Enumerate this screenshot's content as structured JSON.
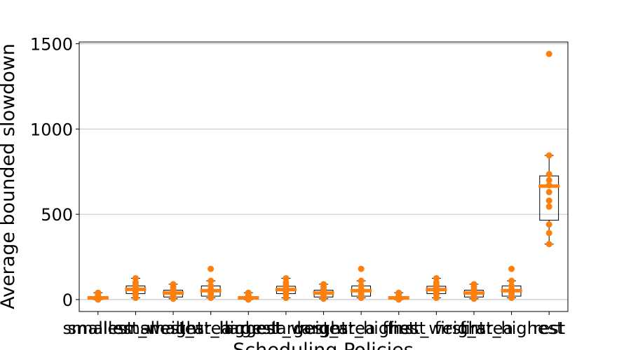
{
  "chart_data": {
    "type": "box",
    "title": "",
    "xlabel": "Scheduling Policies",
    "ylabel": "Average bounded slowdown",
    "ylim": [
      -70,
      1510
    ],
    "yticks": [
      0,
      500,
      1000,
      1500
    ],
    "grid": "horizontal",
    "colors": {
      "median": "#ff7f0e",
      "points": "#ff7f0e",
      "box": "#000000",
      "grid": "#b0b0b0"
    },
    "categories": [
      "smallest",
      "smallest_weight",
      "smallest_area",
      "smallest_highest",
      "largest",
      "largest_weight",
      "largest_area",
      "largest_highest",
      "first",
      "first_weight",
      "first_area",
      "first_highest",
      "rest"
    ],
    "boxes": [
      {
        "q1": 2,
        "median": 10,
        "q3": 18,
        "whisker_low": 0,
        "whisker_high": 40,
        "points": [
          0,
          3,
          6,
          10,
          14,
          20,
          28,
          40
        ]
      },
      {
        "q1": 35,
        "median": 60,
        "q3": 80,
        "whisker_low": 10,
        "whisker_high": 125,
        "points": [
          10,
          30,
          45,
          55,
          60,
          70,
          85,
          100,
          125
        ]
      },
      {
        "q1": 15,
        "median": 38,
        "q3": 55,
        "whisker_low": 5,
        "whisker_high": 90,
        "points": [
          5,
          15,
          25,
          35,
          40,
          50,
          60,
          75,
          90
        ]
      },
      {
        "q1": 20,
        "median": 52,
        "q3": 80,
        "whisker_low": 10,
        "whisker_high": 110,
        "points": [
          10,
          20,
          35,
          52,
          60,
          80,
          110,
          180
        ]
      },
      {
        "q1": 2,
        "median": 10,
        "q3": 18,
        "whisker_low": 0,
        "whisker_high": 40,
        "points": [
          0,
          3,
          6,
          10,
          14,
          20,
          28,
          40
        ]
      },
      {
        "q1": 35,
        "median": 58,
        "q3": 78,
        "whisker_low": 10,
        "whisker_high": 125,
        "points": [
          10,
          30,
          45,
          55,
          60,
          70,
          85,
          100,
          125
        ]
      },
      {
        "q1": 15,
        "median": 38,
        "q3": 55,
        "whisker_low": 5,
        "whisker_high": 90,
        "points": [
          5,
          15,
          25,
          35,
          40,
          50,
          60,
          75,
          90
        ]
      },
      {
        "q1": 20,
        "median": 52,
        "q3": 80,
        "whisker_low": 10,
        "whisker_high": 110,
        "points": [
          10,
          20,
          35,
          52,
          60,
          80,
          110,
          180
        ]
      },
      {
        "q1": 2,
        "median": 10,
        "q3": 18,
        "whisker_low": 0,
        "whisker_high": 40,
        "points": [
          0,
          3,
          6,
          10,
          14,
          20,
          28,
          40
        ]
      },
      {
        "q1": 35,
        "median": 58,
        "q3": 78,
        "whisker_low": 10,
        "whisker_high": 125,
        "points": [
          10,
          30,
          45,
          55,
          60,
          70,
          85,
          100,
          125
        ]
      },
      {
        "q1": 15,
        "median": 38,
        "q3": 55,
        "whisker_low": 5,
        "whisker_high": 90,
        "points": [
          5,
          15,
          25,
          35,
          40,
          50,
          60,
          75,
          90
        ]
      },
      {
        "q1": 20,
        "median": 52,
        "q3": 80,
        "whisker_low": 10,
        "whisker_high": 110,
        "points": [
          10,
          20,
          35,
          52,
          60,
          80,
          110,
          180
        ]
      },
      {
        "q1": 465,
        "median": 665,
        "q3": 725,
        "whisker_low": 325,
        "whisker_high": 845,
        "points": [
          325,
          390,
          440,
          545,
          580,
          630,
          670,
          700,
          735,
          845,
          1440
        ]
      }
    ]
  }
}
